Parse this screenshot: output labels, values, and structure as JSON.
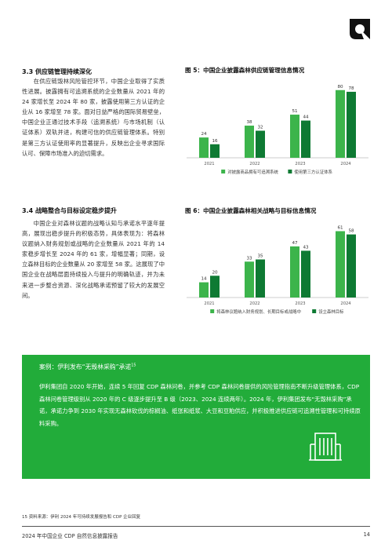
{
  "section_33": {
    "title": "3.3 供应链管理持续深化",
    "paragraph": "在供应链毁林风险管控环节，中国企业取得了实质性进展。披露拥有可追溯系统的企业数量从 2021 年的 24 家增长至 2024 年 80 家，披露使用第三方认证的企业从 16 家增至 78 家。面对日益严格的国际贸易壁垒，中国企业正通过技术手段（追溯系统）与市场机制（认证体系）双轨并进，构建可信的供应链管理体系。特别是第三方认证使用率的显著提升，反映出企业寻求国际认可、保障市场准入的迫切需求。"
  },
  "section_34": {
    "title": "3.4 战略整合与目标设定稳步提升",
    "paragraph": "中国企业对森林议题的战略认知与承诺水平逐年提高，展现出稳步提升的积极态势，具体表现为：将森林议题纳入财务规划或战略的企业数量从 2021 年的 14 家稳步增长至 2024 年的 61 家，增幅显著；同期，设立森林目标的企业数量从 20 家增至 58 家。这展现了中国企业在战略层面持续投入与提升的明确轨迹，并为未来进一步整合资源、深化战略承诺预留了较大的发展空间。"
  },
  "figure5": {
    "title": "图 5：中国企业披露森林供应链管理信息情况"
  },
  "figure6": {
    "title": "图 6：中国企业披露森林相关战略与目标信息情况"
  },
  "chart_data": [
    {
      "type": "bar",
      "title": "图 5：中国企业披露森林供应链管理信息情况",
      "categories": [
        "2021",
        "2022",
        "2023",
        "2024"
      ],
      "series": [
        {
          "name": "对披露商品拥有可追溯系统",
          "values": [
            24,
            38,
            51,
            80
          ],
          "color": "#3cb44b"
        },
        {
          "name": "使用第三方认证体系",
          "values": [
            16,
            32,
            44,
            78
          ],
          "color": "#0e7a33"
        }
      ],
      "ylim": [
        0,
        90
      ],
      "legend": "bottom",
      "grid": false
    },
    {
      "type": "bar",
      "title": "图 6：中国企业披露森林相关战略与目标信息情况",
      "categories": [
        "2021",
        "2022",
        "2023",
        "2024"
      ],
      "series": [
        {
          "name": "将森林议题纳入财务规划、长期目标或战略中",
          "values": [
            14,
            33,
            47,
            61
          ],
          "color": "#3cb44b"
        },
        {
          "name": "设立森林目标",
          "values": [
            20,
            35,
            43,
            58
          ],
          "color": "#0e7a33"
        }
      ],
      "ylim": [
        0,
        70
      ],
      "legend": "bottom",
      "grid": false
    }
  ],
  "case": {
    "title": "案例：伊利发布“无毁林采购”承诺",
    "ref": "15",
    "body": "伊利集团自 2020 年开始，连续 5 年回复 CDP 森林问卷，并参考 CDP 森林问卷提供的风险管理指南不断升级管理体系，CDP 森林问卷管理级别从 2020 年的 C 级逐步提升至 B 级（2023、2024 连续两年）。2024 年，伊利集团发布“无毁林采购”承诺，承诺力争到 2030 年实现无森林砍伐的棕榈油、纸张和纸浆、大豆和豆粕供应，并积极推进供应链可追溯性管理和可持续原料采购。",
    "icon": "building-icon"
  },
  "footnote": "15  资料来源：伊利 2024 年可持续发展报告和 CDP 企业回复",
  "footer": {
    "left": "2024 年中国企业 CDP 自然信息披露报告",
    "page": "14"
  }
}
